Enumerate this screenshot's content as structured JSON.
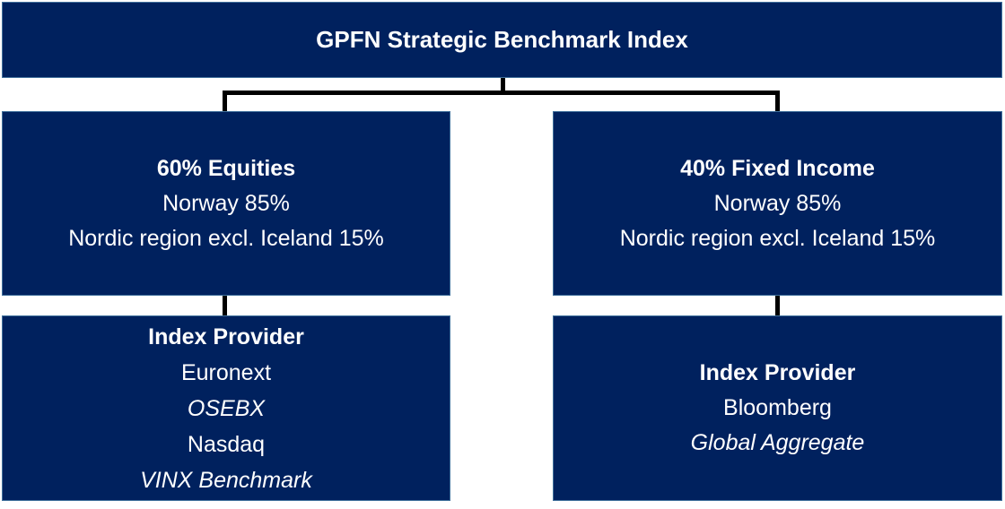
{
  "root": {
    "title": "GPFN Strategic Benchmark Index"
  },
  "equities": {
    "heading": "60% Equities",
    "allocation1": "Norway 85%",
    "allocation2": "Nordic region excl. Iceland 15%"
  },
  "fixed_income": {
    "heading": "40% Fixed Income",
    "allocation1": "Norway 85%",
    "allocation2": "Nordic region excl. Iceland 15%"
  },
  "equities_provider": {
    "heading": "Index Provider",
    "provider1": "Euronext",
    "index1": "OSEBX",
    "provider2": "Nasdaq",
    "index2": "VINX Benchmark"
  },
  "fixed_income_provider": {
    "heading": "Index Provider",
    "provider1": "Bloomberg",
    "index1": "Global Aggregate"
  },
  "colors": {
    "node_fill": "#00215E",
    "node_border": "#41719C",
    "connector": "#000000",
    "text": "#FFFFFF",
    "page_background": "#FFFFFF"
  }
}
